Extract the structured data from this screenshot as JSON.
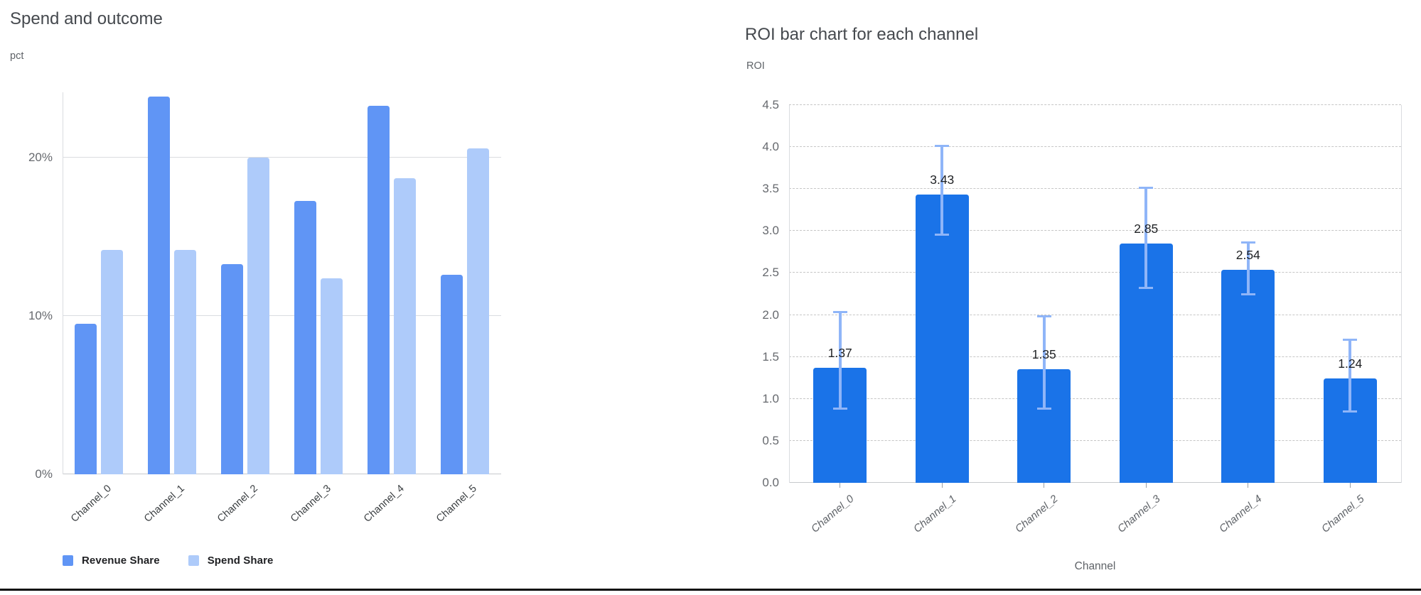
{
  "chart_data": [
    {
      "type": "bar",
      "title": "Spend and outcome",
      "ylabel": "pct",
      "xlabel": "",
      "categories": [
        "Channel_0",
        "Channel_1",
        "Channel_2",
        "Channel_3",
        "Channel_4",
        "Channel_5"
      ],
      "series": [
        {
          "name": "Revenue Share",
          "color": "#6095f5",
          "values": [
            9.5,
            23.9,
            13.3,
            17.3,
            23.3,
            12.6
          ]
        },
        {
          "name": "Spend Share",
          "color": "#aecbfa",
          "values": [
            14.2,
            14.2,
            20.0,
            12.4,
            18.7,
            20.6
          ]
        }
      ],
      "y_ticks": [
        {
          "value": 0,
          "label": "0%"
        },
        {
          "value": 10,
          "label": "10%"
        },
        {
          "value": 20,
          "label": "20%"
        }
      ],
      "ylim": [
        0,
        24.15
      ],
      "grid": "solid",
      "legend_position": "bottom"
    },
    {
      "type": "bar",
      "title": "ROI bar chart for each channel",
      "ylabel": "ROI",
      "xlabel": "Channel",
      "categories": [
        "Channel_0",
        "Channel_1",
        "Channel_2",
        "Channel_3",
        "Channel_4",
        "Channel_5"
      ],
      "series": [
        {
          "name": "ROI",
          "color": "#1a73e8",
          "values": [
            1.37,
            3.43,
            1.35,
            2.85,
            2.54,
            1.24
          ]
        }
      ],
      "data_labels": [
        "1.37",
        "3.43",
        "1.35",
        "2.85",
        "2.54",
        "1.24"
      ],
      "error_bars": {
        "color": "#8fb5f8",
        "low": [
          0.88,
          2.95,
          0.88,
          2.32,
          2.24,
          0.85
        ],
        "high": [
          2.04,
          4.02,
          1.99,
          3.52,
          2.87,
          1.71
        ]
      },
      "y_ticks": [
        {
          "value": 0.0,
          "label": "0.0"
        },
        {
          "value": 0.5,
          "label": "0.5"
        },
        {
          "value": 1.0,
          "label": "1.0"
        },
        {
          "value": 1.5,
          "label": "1.5"
        },
        {
          "value": 2.0,
          "label": "2.0"
        },
        {
          "value": 2.5,
          "label": "2.5"
        },
        {
          "value": 3.0,
          "label": "3.0"
        },
        {
          "value": 3.5,
          "label": "3.5"
        },
        {
          "value": 4.0,
          "label": "4.0"
        },
        {
          "value": 4.5,
          "label": "4.5"
        }
      ],
      "ylim": [
        0,
        4.5
      ],
      "grid": "dashed",
      "legend_position": "none"
    }
  ]
}
